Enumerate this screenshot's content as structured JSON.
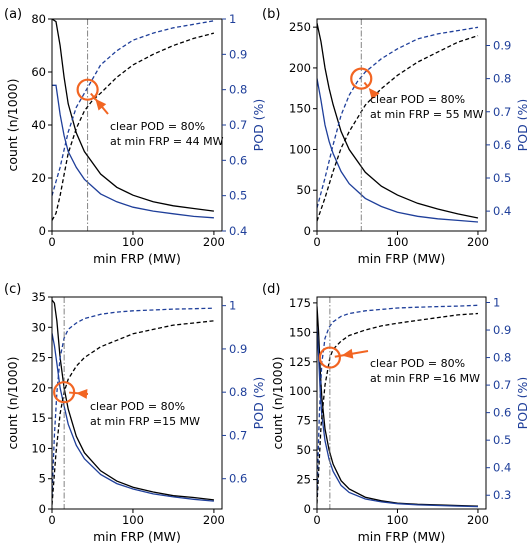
{
  "figure": {
    "colors": {
      "count_line": "#000000",
      "pod_line": "#1f3f9a",
      "pod_axis": "#1f3f9a",
      "marker": "#f26522",
      "vline": "#777777"
    }
  },
  "chart_data": [
    {
      "type": "line",
      "panel_label": "(a)",
      "xlabel": "min FRP (MW)",
      "ylabel": "count (n/1000)",
      "y2label": "POD (%)",
      "xlim": [
        0,
        210
      ],
      "xticks": [
        0,
        100,
        200
      ],
      "ylim": [
        0,
        80
      ],
      "yticks": [
        0,
        20,
        40,
        60,
        80
      ],
      "y2lim": [
        0.4,
        1.0
      ],
      "y2ticks": [
        0.4,
        0.5,
        0.6,
        0.7,
        0.8,
        0.9,
        1.0
      ],
      "annotation": {
        "line1": "clear POD = 80%",
        "line2": "at min FRP = 44 MW",
        "x": 44,
        "pod": 0.8
      },
      "series": [
        {
          "axis": "left",
          "color": "#000000",
          "dash": "solid",
          "x": [
            0,
            5,
            10,
            15,
            20,
            30,
            40,
            60,
            80,
            100,
            125,
            150,
            175,
            200
          ],
          "y": [
            80,
            79,
            70,
            58,
            48,
            37,
            30,
            21.5,
            16.5,
            13.5,
            11,
            9.5,
            8.5,
            7.5
          ]
        },
        {
          "axis": "left",
          "color": "#1f3f9a",
          "dash": "solid",
          "x": [
            0,
            5,
            10,
            15,
            20,
            30,
            40,
            60,
            80,
            100,
            125,
            150,
            175,
            200
          ],
          "y": [
            55,
            55,
            44,
            36,
            30,
            24,
            19.5,
            14,
            11,
            9,
            7.5,
            6.5,
            5.5,
            5
          ]
        },
        {
          "axis": "right",
          "color": "#000000",
          "dash": "dashed",
          "x": [
            0,
            5,
            10,
            15,
            20,
            30,
            40,
            50,
            60,
            80,
            100,
            125,
            150,
            175,
            200
          ],
          "y": [
            0.43,
            0.45,
            0.5,
            0.56,
            0.62,
            0.69,
            0.74,
            0.77,
            0.79,
            0.835,
            0.87,
            0.9,
            0.925,
            0.945,
            0.96
          ]
        },
        {
          "axis": "right",
          "color": "#1f3f9a",
          "dash": "dashed",
          "x": [
            0,
            5,
            10,
            15,
            20,
            30,
            40,
            50,
            60,
            80,
            100,
            125,
            150,
            175,
            200
          ],
          "y": [
            0.5,
            0.54,
            0.58,
            0.63,
            0.68,
            0.75,
            0.79,
            0.83,
            0.87,
            0.91,
            0.94,
            0.96,
            0.975,
            0.985,
            0.995
          ]
        }
      ]
    },
    {
      "type": "line",
      "panel_label": "(b)",
      "xlabel": "min FRP (MW)",
      "ylabel": "",
      "y2label": "POD (%)",
      "xlim": [
        0,
        210
      ],
      "xticks": [
        0,
        100,
        200
      ],
      "ylim": [
        0,
        260
      ],
      "yticks": [
        0,
        50,
        100,
        150,
        200,
        250
      ],
      "y2lim": [
        0.34,
        0.98
      ],
      "y2ticks": [
        0.4,
        0.5,
        0.6,
        0.7,
        0.8,
        0.9
      ],
      "annotation": {
        "line1": "clear POD = 80%",
        "line2": "at min FRP = 55 MW",
        "x": 55,
        "pod": 0.8
      },
      "series": [
        {
          "axis": "left",
          "color": "#000000",
          "dash": "solid",
          "x": [
            0,
            5,
            10,
            15,
            20,
            30,
            40,
            60,
            80,
            100,
            125,
            150,
            175,
            200
          ],
          "y": [
            255,
            232,
            200,
            175,
            155,
            122,
            100,
            72,
            55,
            44,
            34,
            27,
            21,
            16
          ]
        },
        {
          "axis": "left",
          "color": "#1f3f9a",
          "dash": "solid",
          "x": [
            0,
            5,
            10,
            15,
            20,
            30,
            40,
            60,
            80,
            100,
            125,
            150,
            175,
            200
          ],
          "y": [
            187,
            160,
            130,
            110,
            95,
            73,
            58,
            40,
            30,
            23,
            18,
            15,
            13,
            11
          ]
        },
        {
          "axis": "right",
          "color": "#000000",
          "dash": "dashed",
          "x": [
            0,
            10,
            20,
            30,
            40,
            50,
            60,
            80,
            100,
            125,
            150,
            175,
            200
          ],
          "y": [
            0.37,
            0.44,
            0.52,
            0.59,
            0.64,
            0.68,
            0.72,
            0.77,
            0.81,
            0.85,
            0.88,
            0.91,
            0.93
          ]
        },
        {
          "axis": "right",
          "color": "#1f3f9a",
          "dash": "dashed",
          "x": [
            0,
            10,
            20,
            30,
            40,
            50,
            60,
            80,
            100,
            125,
            150,
            175,
            200
          ],
          "y": [
            0.41,
            0.5,
            0.6,
            0.69,
            0.75,
            0.79,
            0.82,
            0.86,
            0.89,
            0.92,
            0.935,
            0.945,
            0.955
          ]
        }
      ]
    },
    {
      "type": "line",
      "panel_label": "(c)",
      "xlabel": "min FRP (MW)",
      "ylabel": "count (n/1000)",
      "y2label": "POD (%)",
      "xlim": [
        0,
        210
      ],
      "xticks": [
        0,
        100,
        200
      ],
      "ylim": [
        0,
        35
      ],
      "yticks": [
        0,
        5,
        10,
        15,
        20,
        25,
        30,
        35
      ],
      "y2lim": [
        0.53,
        1.02
      ],
      "y2ticks": [
        0.6,
        0.7,
        0.8,
        0.9,
        1.0
      ],
      "annotation": {
        "line1": "clear POD = 80%",
        "line2": "at min FRP =15 MW",
        "x": 15,
        "pod": 0.8
      },
      "series": [
        {
          "axis": "left",
          "color": "#000000",
          "dash": "solid",
          "x": [
            0,
            3,
            6,
            10,
            15,
            20,
            30,
            40,
            60,
            80,
            100,
            125,
            150,
            175,
            200
          ],
          "y": [
            34.5,
            34,
            31,
            25,
            20,
            16.5,
            12,
            9.3,
            6.3,
            4.6,
            3.6,
            2.8,
            2.2,
            1.9,
            1.5
          ]
        },
        {
          "axis": "left",
          "color": "#1f3f9a",
          "dash": "solid",
          "x": [
            0,
            3,
            6,
            10,
            15,
            20,
            30,
            40,
            60,
            80,
            100,
            125,
            150,
            175,
            200
          ],
          "y": [
            29,
            27,
            24,
            20,
            17,
            14,
            10.5,
            8.3,
            5.7,
            4.2,
            3.3,
            2.5,
            2,
            1.6,
            1.3
          ]
        },
        {
          "axis": "right",
          "color": "#000000",
          "dash": "dashed",
          "x": [
            0,
            5,
            10,
            15,
            20,
            30,
            40,
            60,
            80,
            100,
            125,
            150,
            175,
            200
          ],
          "y": [
            0.54,
            0.66,
            0.75,
            0.8,
            0.83,
            0.86,
            0.88,
            0.905,
            0.92,
            0.935,
            0.945,
            0.955,
            0.96,
            0.965
          ]
        },
        {
          "axis": "right",
          "color": "#1f3f9a",
          "dash": "dashed",
          "x": [
            0,
            3,
            6,
            10,
            15,
            20,
            30,
            40,
            60,
            80,
            100,
            125,
            150,
            175,
            200
          ],
          "y": [
            0.56,
            0.7,
            0.8,
            0.88,
            0.925,
            0.945,
            0.96,
            0.97,
            0.98,
            0.985,
            0.988,
            0.99,
            0.992,
            0.993,
            0.994
          ]
        }
      ]
    },
    {
      "type": "line",
      "panel_label": "(d)",
      "xlabel": "min FRP (MW)",
      "ylabel": "count (n/1000)",
      "y2label": "POD (%)",
      "xlim": [
        0,
        210
      ],
      "xticks": [
        0,
        100,
        200
      ],
      "ylim": [
        0,
        180
      ],
      "yticks": [
        0,
        25,
        50,
        75,
        100,
        125,
        150,
        175
      ],
      "y2lim": [
        0.25,
        1.02
      ],
      "y2ticks": [
        0.3,
        0.4,
        0.5,
        0.6,
        0.7,
        0.8,
        0.9,
        1.0
      ],
      "annotation": {
        "line1": "clear POD = 80%",
        "line2": "at min FRP =16 MW",
        "x": 16,
        "pod": 0.8
      },
      "series": [
        {
          "axis": "left",
          "color": "#000000",
          "dash": "solid",
          "x": [
            0,
            2,
            4,
            6,
            10,
            15,
            20,
            30,
            40,
            60,
            80,
            100,
            125,
            150,
            175,
            200
          ],
          "y": [
            172,
            150,
            118,
            95,
            68,
            50,
            38,
            24,
            17,
            10,
            7,
            5,
            4,
            3.5,
            3,
            2.5
          ]
        },
        {
          "axis": "left",
          "color": "#1f3f9a",
          "dash": "solid",
          "x": [
            0,
            2,
            4,
            6,
            10,
            15,
            20,
            30,
            40,
            60,
            80,
            100,
            125,
            150,
            175,
            200
          ],
          "y": [
            155,
            130,
            100,
            80,
            58,
            42,
            32,
            20,
            14,
            8.5,
            6,
            4.5,
            3.5,
            3,
            2.5,
            2
          ]
        },
        {
          "axis": "right",
          "color": "#000000",
          "dash": "dashed",
          "x": [
            0,
            5,
            10,
            16,
            20,
            30,
            40,
            60,
            80,
            100,
            125,
            150,
            175,
            200
          ],
          "y": [
            0.27,
            0.55,
            0.7,
            0.8,
            0.83,
            0.86,
            0.88,
            0.9,
            0.915,
            0.925,
            0.935,
            0.945,
            0.955,
            0.96
          ]
        },
        {
          "axis": "right",
          "color": "#1f3f9a",
          "dash": "dashed",
          "x": [
            0,
            3,
            6,
            10,
            15,
            20,
            30,
            40,
            60,
            80,
            100,
            125,
            150,
            175,
            200
          ],
          "y": [
            0.3,
            0.6,
            0.78,
            0.87,
            0.91,
            0.93,
            0.95,
            0.96,
            0.97,
            0.975,
            0.98,
            0.983,
            0.985,
            0.987,
            0.99
          ]
        }
      ]
    }
  ]
}
